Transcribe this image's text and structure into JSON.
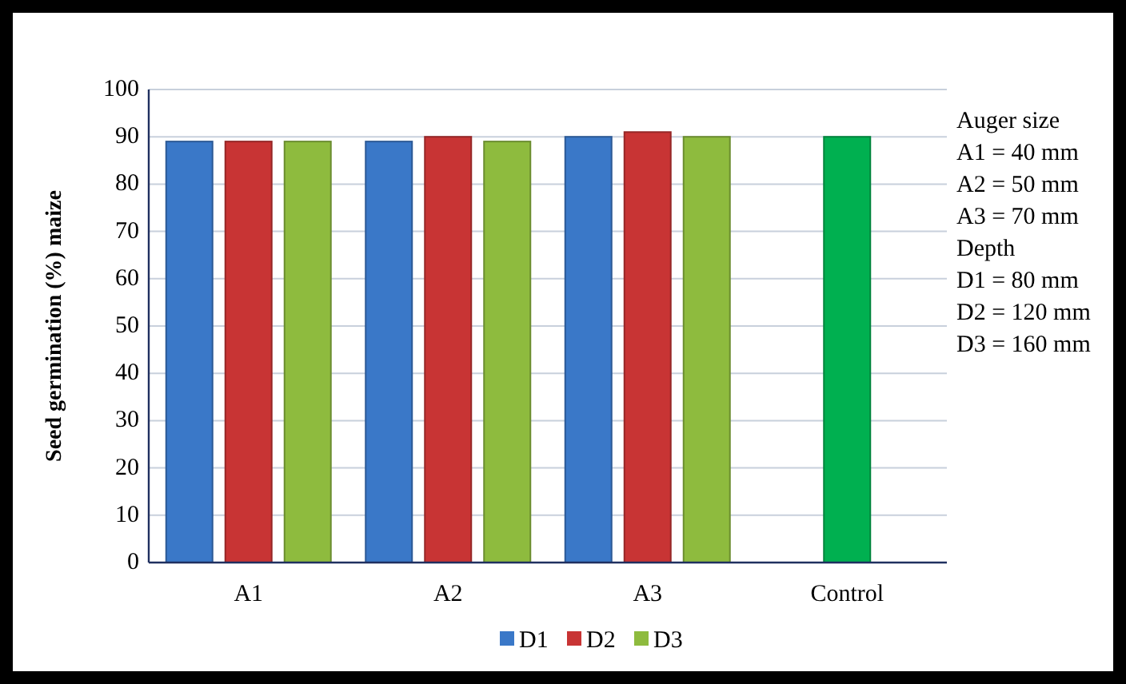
{
  "chart_data": {
    "type": "bar",
    "ylabel": "Seed germination (%) maize",
    "categories": [
      "A1",
      "A2",
      "A3",
      "Control"
    ],
    "series": [
      {
        "name": "D1",
        "color": "#3a78c8",
        "values": [
          89,
          89,
          90,
          null
        ]
      },
      {
        "name": "D2",
        "color": "#c83434",
        "values": [
          89,
          90,
          91,
          null
        ]
      },
      {
        "name": "D3",
        "color": "#8ebb3e",
        "values": [
          89,
          89,
          90,
          null
        ]
      },
      {
        "color": "#00b050",
        "values": [
          null,
          null,
          null,
          90
        ]
      }
    ],
    "ylim": [
      0,
      100
    ],
    "yticks": [
      0,
      10,
      20,
      30,
      40,
      50,
      60,
      70,
      80,
      90,
      100
    ],
    "grid": "y",
    "legend": "bottom",
    "annotations": [
      "Auger size\nA1 = 40 mm\nA2 = 50 mm\nA3 = 70 mm\n\nDepth\nD1 = 80 mm\nD2 = 120 mm\nD3 = 160 mm"
    ]
  }
}
